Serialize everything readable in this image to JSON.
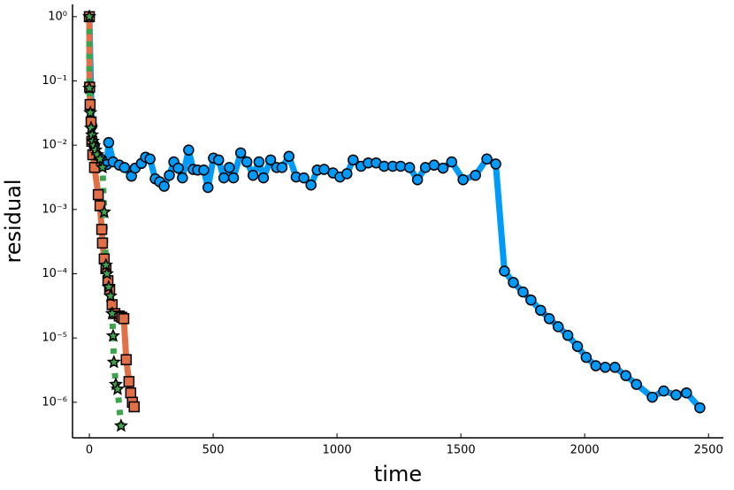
{
  "chart_data": {
    "type": "line",
    "xlabel": "time",
    "ylabel": "residual",
    "yscale": "log",
    "grid": false,
    "xlim": [
      -68,
      2560
    ],
    "xticks": [
      0,
      500,
      1000,
      1500,
      2000,
      2500
    ],
    "ylim": [
      2.8e-07,
      1.55
    ],
    "yticks": [
      {
        "value": 1,
        "label": "10⁰"
      },
      {
        "value": 0.1,
        "label": "10⁻¹"
      },
      {
        "value": 0.01,
        "label": "10⁻²"
      },
      {
        "value": 0.001,
        "label": "10⁻³"
      },
      {
        "value": 0.0001,
        "label": "10⁻⁴"
      },
      {
        "value": 1e-05,
        "label": "10⁻⁵"
      },
      {
        "value": 1e-06,
        "label": "10⁻⁶"
      }
    ],
    "series": [
      {
        "color": "#009af9",
        "marker": "circle",
        "dash": false,
        "x": [
          0,
          10,
          20,
          30,
          50,
          70,
          78,
          96,
          121,
          142,
          170,
          185,
          210,
          227,
          245,
          266,
          284,
          302,
          323,
          341,
          359,
          376,
          401,
          419,
          437,
          462,
          479,
          501,
          522,
          543,
          565,
          582,
          611,
          636,
          661,
          685,
          703,
          732,
          756,
          778,
          806,
          835,
          866,
          895,
          920,
          948,
          984,
          1012,
          1040,
          1065,
          1097,
          1126,
          1158,
          1190,
          1225,
          1257,
          1293,
          1325,
          1357,
          1392,
          1428,
          1463,
          1509,
          1559,
          1605,
          1641,
          1676,
          1712,
          1751,
          1783,
          1822,
          1857,
          1893,
          1932,
          1971,
          2006,
          2045,
          2083,
          2122,
          2166,
          2209,
          2273,
          2319,
          2369,
          2411,
          2465
        ],
        "values": [
          1.0,
          0.02,
          0.01,
          0.007,
          0.006,
          0.005,
          0.011,
          0.0055,
          0.0049,
          0.0045,
          0.0033,
          0.0044,
          0.0052,
          0.0065,
          0.0061,
          0.003,
          0.0027,
          0.0023,
          0.0034,
          0.0055,
          0.0044,
          0.0031,
          0.0084,
          0.0042,
          0.0041,
          0.0041,
          0.0022,
          0.0063,
          0.0059,
          0.0031,
          0.0045,
          0.0031,
          0.0076,
          0.0055,
          0.0034,
          0.0055,
          0.0031,
          0.0059,
          0.0045,
          0.0045,
          0.0067,
          0.0032,
          0.0031,
          0.0024,
          0.0041,
          0.0042,
          0.0037,
          0.0032,
          0.0036,
          0.0059,
          0.0047,
          0.0053,
          0.0053,
          0.0047,
          0.0047,
          0.0047,
          0.0045,
          0.0029,
          0.0045,
          0.0049,
          0.0044,
          0.0055,
          0.0029,
          0.0034,
          0.0061,
          0.0051,
          0.00011,
          7.3e-05,
          5.2e-05,
          3.9e-05,
          2.7e-05,
          2e-05,
          1.5e-05,
          1.1e-05,
          7.4e-06,
          5e-06,
          3.7e-06,
          3.5e-06,
          3.5e-06,
          2.6e-06,
          1.9e-06,
          1.2e-06,
          1.5e-06,
          1.3e-06,
          1.4e-06,
          8.2e-07
        ]
      },
      {
        "color": "#e26f46",
        "marker": "square",
        "dash": false,
        "x": [
          0,
          1,
          3,
          7,
          10,
          14,
          21,
          36,
          43,
          50,
          53,
          60,
          67,
          75,
          82,
          92,
          103,
          121,
          131,
          139,
          149,
          160,
          167,
          174,
          181
        ],
        "values": [
          1.0,
          0.08,
          0.043,
          0.023,
          0.0115,
          0.0071,
          0.0045,
          0.0017,
          0.00114,
          0.00049,
          0.0003,
          0.00017,
          0.00012,
          7.8e-05,
          5.7e-05,
          3.3e-05,
          2.4e-05,
          2.2e-05,
          2.1e-05,
          2e-05,
          4.6e-06,
          2.1e-06,
          1.4e-06,
          1e-06,
          8.5e-07
        ]
      },
      {
        "color": "#3da44d",
        "marker": "star",
        "dash": true,
        "x": [
          0,
          0,
          4,
          7,
          11,
          14,
          18,
          25,
          32,
          43,
          53,
          60,
          67,
          71,
          78,
          85,
          92,
          96,
          99,
          107,
          114,
          128
        ],
        "values": [
          1.0,
          0.077,
          0.032,
          0.0185,
          0.0144,
          0.0115,
          0.0098,
          0.0084,
          0.0071,
          0.0061,
          0.0045,
          0.00091,
          0.000136,
          0.0001,
          6.2e-05,
          4.5e-05,
          2.4e-05,
          1.08e-05,
          4.2e-06,
          1.9e-06,
          1.6e-06,
          4.3e-07
        ]
      }
    ]
  }
}
